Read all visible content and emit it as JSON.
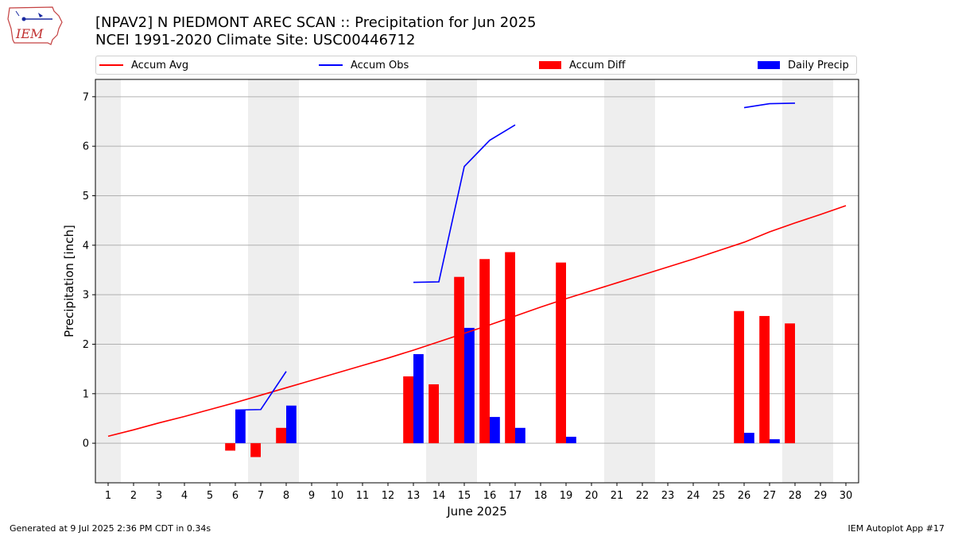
{
  "header": {
    "title_line1": "[NPAV2] N PIEDMONT AREC SCAN :: Precipitation for Jun 2025",
    "title_line2": "NCEI 1991-2020 Climate Site: USC00446712",
    "logo_text": "IEM"
  },
  "legend": {
    "accum_avg": "Accum Avg",
    "accum_obs": "Accum Obs",
    "accum_diff": "Accum Diff",
    "daily_precip": "Daily Precip"
  },
  "colors": {
    "accum_avg": "#ff0000",
    "accum_obs": "#0000ff",
    "accum_diff": "#ff0000",
    "daily_precip": "#0000ff",
    "weekend_shade": "#eeeeee"
  },
  "footer": {
    "generated": "Generated at 9 Jul 2025 2:36 PM CDT in 0.34s",
    "app": "IEM Autoplot App #17"
  },
  "chart_data": {
    "type": "bar",
    "xlabel": "June 2025",
    "ylabel": "Precipitation [inch]",
    "x": [
      1,
      2,
      3,
      4,
      5,
      6,
      7,
      8,
      9,
      10,
      11,
      12,
      13,
      14,
      15,
      16,
      17,
      18,
      19,
      20,
      21,
      22,
      23,
      24,
      25,
      26,
      27,
      28,
      29,
      30
    ],
    "xlim": [
      0.5,
      30.5
    ],
    "ylim": [
      -0.8,
      7.35
    ],
    "yticks": [
      0,
      1,
      2,
      3,
      4,
      5,
      6,
      7
    ],
    "grid": "horizontal",
    "weekend_shading": [
      [
        0.5,
        1.5
      ],
      [
        6.5,
        8.5
      ],
      [
        13.5,
        15.5
      ],
      [
        20.5,
        22.5
      ],
      [
        27.5,
        29.5
      ]
    ],
    "series": [
      {
        "name": "Accum Avg",
        "kind": "line",
        "x": [
          1,
          2,
          3,
          4,
          5,
          6,
          7,
          8,
          9,
          10,
          11,
          12,
          13,
          14,
          15,
          16,
          17,
          18,
          19,
          20,
          21,
          22,
          23,
          24,
          25,
          26,
          27,
          28,
          29,
          30
        ],
        "values": [
          0.14,
          0.27,
          0.41,
          0.54,
          0.68,
          0.82,
          0.97,
          1.12,
          1.27,
          1.42,
          1.57,
          1.72,
          1.88,
          2.05,
          2.22,
          2.39,
          2.57,
          2.75,
          2.92,
          3.08,
          3.24,
          3.4,
          3.56,
          3.72,
          3.89,
          4.06,
          4.27,
          4.45,
          4.62,
          4.8
        ]
      },
      {
        "name": "Accum Obs",
        "kind": "line",
        "segments": [
          {
            "x": [
              6,
              7,
              8
            ],
            "values": [
              0.67,
              0.68,
              1.45
            ]
          },
          {
            "x": [
              13,
              14,
              15,
              16,
              17
            ],
            "values": [
              3.25,
              3.26,
              5.59,
              6.12,
              6.43
            ]
          },
          {
            "x": [
              26,
              27,
              28
            ],
            "values": [
              6.78,
              6.86,
              6.87
            ]
          }
        ]
      },
      {
        "name": "Accum Diff",
        "kind": "bar",
        "x": [
          6,
          7,
          8,
          13,
          14,
          15,
          16,
          17,
          19,
          26,
          27,
          28
        ],
        "values": [
          -0.15,
          -0.28,
          0.31,
          1.35,
          1.19,
          3.36,
          3.72,
          3.86,
          3.65,
          2.67,
          2.57,
          2.42
        ]
      },
      {
        "name": "Daily Precip",
        "kind": "bar",
        "x": [
          6,
          8,
          13,
          15,
          16,
          17,
          19,
          26,
          27
        ],
        "values": [
          0.67,
          0.76,
          1.8,
          2.33,
          0.53,
          0.31,
          0.13,
          0.21,
          0.08
        ]
      }
    ]
  }
}
